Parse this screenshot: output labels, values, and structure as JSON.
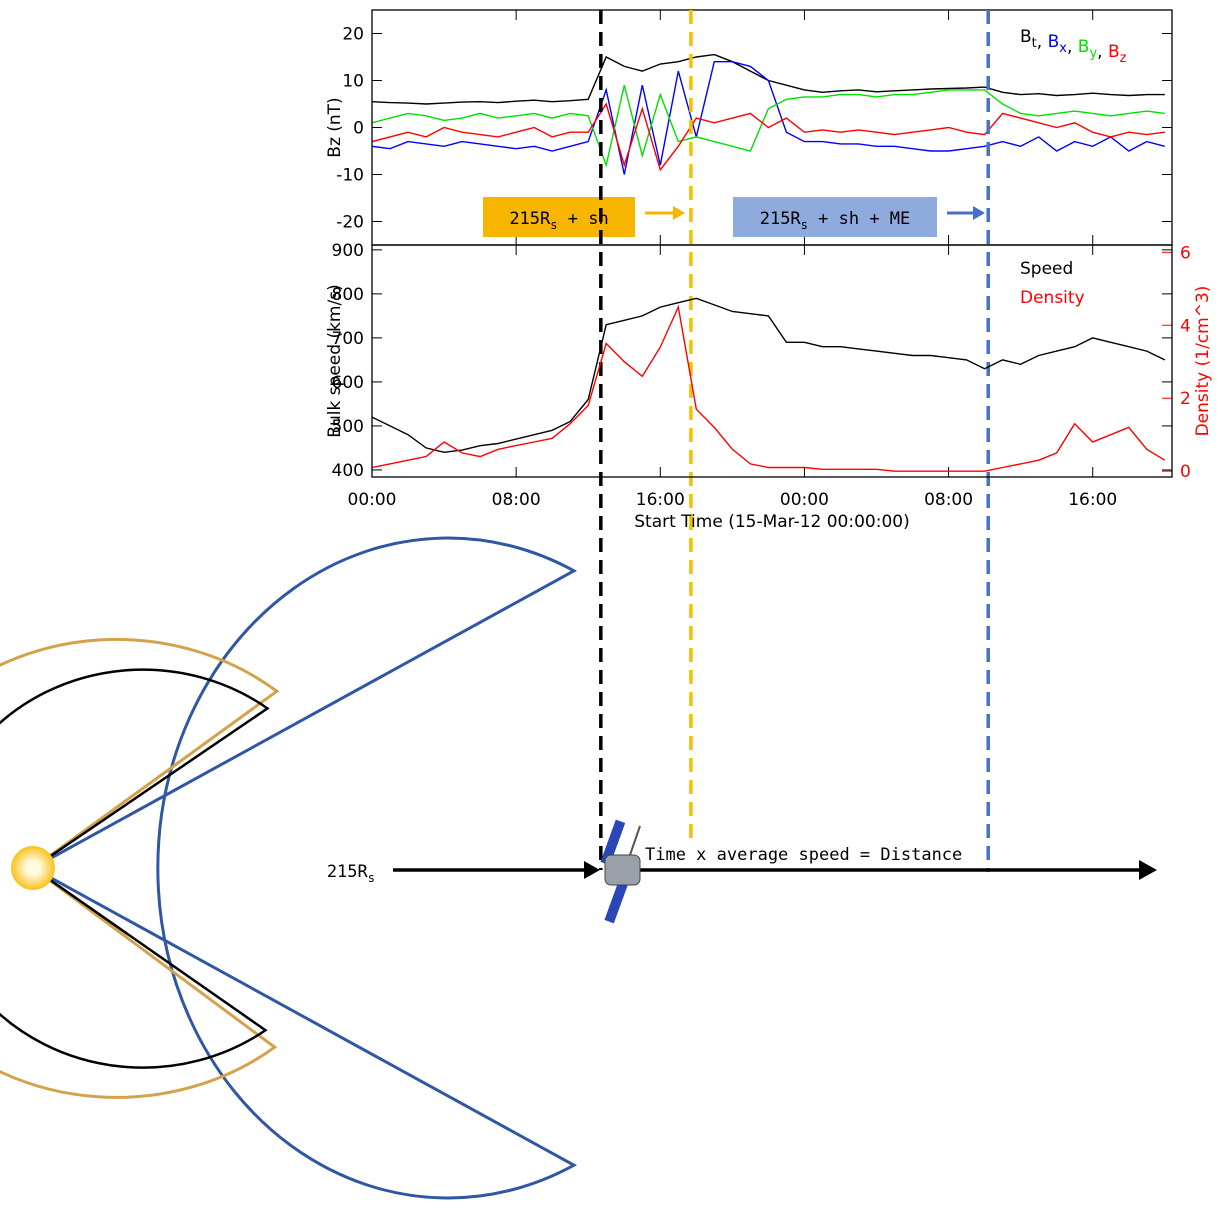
{
  "chart_data": [
    {
      "type": "line",
      "ylabel": "Bz (nT)",
      "x": [
        0,
        1,
        2,
        3,
        4,
        5,
        6,
        7,
        8,
        9,
        10,
        11,
        12,
        13,
        14,
        15,
        16,
        17,
        18,
        19,
        20,
        21,
        22,
        23,
        24,
        25,
        26,
        27,
        28,
        29,
        30,
        31,
        32,
        33,
        34,
        35,
        36,
        37,
        38,
        39,
        40,
        41,
        42,
        43,
        44
      ],
      "xlim": [
        0,
        44.4
      ],
      "xticks": [
        0,
        8,
        16,
        24,
        32,
        40
      ],
      "ylim": [
        -25,
        25
      ],
      "yticks": [
        -20,
        -10,
        0,
        10,
        20
      ],
      "legend_separator": ", ",
      "series": [
        {
          "name": "B",
          "name_sub": "t",
          "color": "#000000",
          "values": [
            5.5,
            5.3,
            5.2,
            5,
            5.2,
            5.4,
            5.5,
            5.3,
            5.6,
            5.8,
            5.5,
            5.7,
            6,
            15,
            13,
            12,
            13.5,
            14,
            15,
            15.5,
            14,
            12,
            10,
            9,
            8,
            7.5,
            7.8,
            8,
            7.6,
            7.8,
            8,
            8.2,
            8.3,
            8.4,
            8.6,
            7.5,
            7,
            7.2,
            6.8,
            7,
            7.3,
            7,
            6.8,
            7,
            7
          ]
        },
        {
          "name": "B",
          "name_sub": "x",
          "color": "#0000ff",
          "values": [
            -4,
            -4.5,
            -3,
            -3.5,
            -4,
            -3,
            -3.5,
            -4,
            -4.5,
            -4,
            -5,
            -4,
            -3,
            8,
            -10,
            9,
            -8,
            12,
            -2,
            14,
            14,
            13,
            10,
            -1,
            -3,
            -3,
            -3.5,
            -3.5,
            -4,
            -4,
            -4.5,
            -5,
            -5,
            -4.5,
            -4,
            -3,
            -4,
            -2,
            -5,
            -3,
            -4,
            -2,
            -5,
            -3,
            -4
          ]
        },
        {
          "name": "B",
          "name_sub": "y",
          "color": "#00e000",
          "values": [
            1,
            2,
            3,
            2.5,
            1.5,
            2,
            3,
            2,
            2.5,
            3,
            2,
            3,
            2.5,
            -8,
            9,
            -6,
            7,
            -3,
            -2,
            -3,
            -4,
            -5,
            4,
            6,
            6.5,
            6.5,
            7,
            7,
            6.5,
            7,
            7,
            7.5,
            8,
            8,
            8,
            5,
            3,
            2.5,
            3,
            3.5,
            3,
            2.5,
            3,
            3.5,
            3
          ]
        },
        {
          "name": "B",
          "name_sub": "z",
          "color": "#ff0000",
          "values": [
            -3,
            -2,
            -1,
            -2,
            0,
            -1,
            -1.5,
            -2,
            -1,
            0,
            -2,
            -1,
            -1,
            5,
            -8,
            4,
            -9,
            -4,
            2,
            1,
            2,
            3,
            0,
            2,
            -1,
            -0.5,
            -1,
            -0.5,
            -1,
            -1.5,
            -1,
            -0.5,
            0,
            -1,
            -1.5,
            3,
            2,
            1,
            0,
            1,
            -1,
            -2,
            -1,
            -1.5,
            -1
          ]
        }
      ],
      "markers": [
        {
          "x": 12.7,
          "color": "#000000"
        },
        {
          "x": 17.7,
          "color": "#f5c000"
        },
        {
          "x": 34.2,
          "color": "#4472c4"
        }
      ],
      "annotations": [
        {
          "main": "215R",
          "sub": "s",
          "rest": " + sh",
          "color": "#f7b500"
        },
        {
          "main": "215R",
          "sub": "s",
          "rest": " + sh + ME",
          "color": "#8faadc"
        }
      ]
    },
    {
      "type": "line",
      "ylabel": "Bulk speed (km/s)",
      "y2label": "Density (1/cm^3)",
      "xlabel": "Start Time (15-Mar-12 00:00:00)",
      "x": [
        0,
        1,
        2,
        3,
        4,
        5,
        6,
        7,
        8,
        9,
        10,
        11,
        12,
        13,
        14,
        15,
        16,
        17,
        18,
        19,
        20,
        21,
        22,
        23,
        24,
        25,
        26,
        27,
        28,
        29,
        30,
        31,
        32,
        33,
        34,
        35,
        36,
        37,
        38,
        39,
        40,
        41,
        42,
        43,
        44
      ],
      "xlim": [
        0,
        44.4
      ],
      "xticks": [
        {
          "value": 0,
          "label": "00:00"
        },
        {
          "value": 8,
          "label": "08:00"
        },
        {
          "value": 16,
          "label": "16:00"
        },
        {
          "value": 24,
          "label": "00:00"
        },
        {
          "value": 32,
          "label": "08:00"
        },
        {
          "value": 40,
          "label": "16:00"
        }
      ],
      "ylim": [
        384,
        911
      ],
      "yticks": [
        400,
        500,
        600,
        700,
        800,
        900
      ],
      "y2lim": [
        -0.16,
        6.2
      ],
      "y2ticks": [
        0,
        2,
        4,
        6
      ],
      "y2color": "#ff0000",
      "series": [
        {
          "name": "Speed",
          "color": "#000000",
          "values": [
            520,
            500,
            480,
            450,
            440,
            445,
            455,
            460,
            470,
            480,
            490,
            510,
            560,
            730,
            740,
            750,
            770,
            780,
            790,
            775,
            760,
            755,
            750,
            690,
            690,
            680,
            680,
            675,
            670,
            665,
            660,
            660,
            655,
            650,
            630,
            650,
            640,
            660,
            670,
            680,
            700,
            690,
            680,
            670,
            650
          ]
        },
        {
          "name": "Density",
          "color": "#ff0000",
          "axis": "y2",
          "values": [
            0.1,
            0.2,
            0.3,
            0.4,
            0.8,
            0.5,
            0.4,
            0.6,
            0.7,
            0.8,
            0.9,
            1.3,
            1.8,
            3.5,
            3,
            2.6,
            3.4,
            4.5,
            1.7,
            1.2,
            0.6,
            0.2,
            0.1,
            0.1,
            0.1,
            0.05,
            0.05,
            0.05,
            0.05,
            0,
            0,
            0,
            0,
            0,
            0,
            0.1,
            0.2,
            0.3,
            0.5,
            1.3,
            0.8,
            1,
            1.2,
            0.6,
            0.3
          ]
        }
      ]
    }
  ],
  "diagram": {
    "distance_label": {
      "main": "215R",
      "sub": "s"
    },
    "equation": "Time x average speed = Distance"
  }
}
